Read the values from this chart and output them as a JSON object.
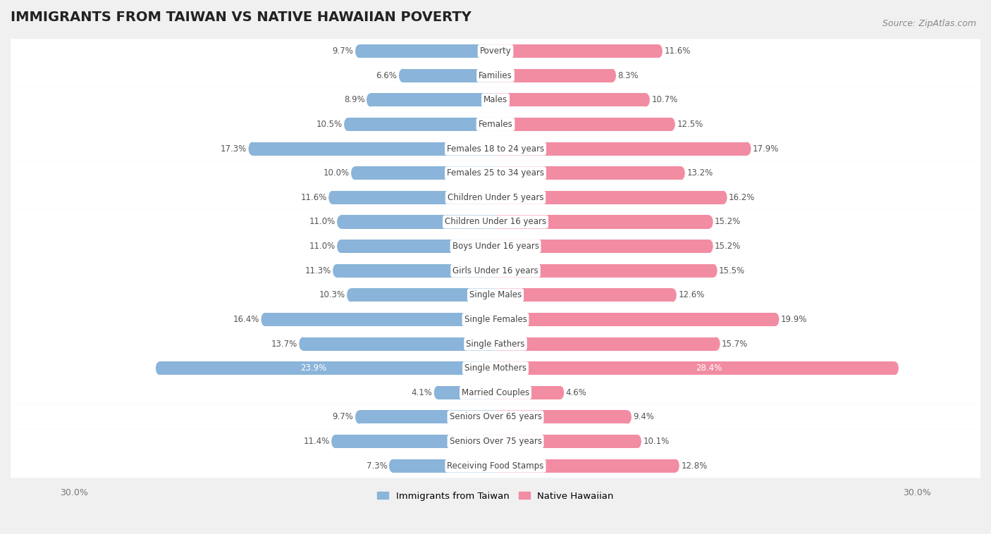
{
  "title": "IMMIGRANTS FROM TAIWAN VS NATIVE HAWAIIAN POVERTY",
  "source": "Source: ZipAtlas.com",
  "categories": [
    "Poverty",
    "Families",
    "Males",
    "Females",
    "Females 18 to 24 years",
    "Females 25 to 34 years",
    "Children Under 5 years",
    "Children Under 16 years",
    "Boys Under 16 years",
    "Girls Under 16 years",
    "Single Males",
    "Single Females",
    "Single Fathers",
    "Single Mothers",
    "Married Couples",
    "Seniors Over 65 years",
    "Seniors Over 75 years",
    "Receiving Food Stamps"
  ],
  "taiwan_values": [
    9.7,
    6.6,
    8.9,
    10.5,
    17.3,
    10.0,
    11.6,
    11.0,
    11.0,
    11.3,
    10.3,
    16.4,
    13.7,
    23.9,
    4.1,
    9.7,
    11.4,
    7.3
  ],
  "hawaiian_values": [
    11.6,
    8.3,
    10.7,
    12.5,
    17.9,
    13.2,
    16.2,
    15.2,
    15.2,
    15.5,
    12.6,
    19.9,
    15.7,
    28.4,
    4.6,
    9.4,
    10.1,
    12.8
  ],
  "taiwan_color": "#8ab4d9",
  "hawaiian_color": "#f28ca3",
  "taiwan_color_light": "#b8d4ea",
  "hawaiian_color_light": "#f7b8c5",
  "background_color": "#f0f0f0",
  "row_bg_color": "#ffffff",
  "row_separator_color": "#e8e8e8",
  "axis_max": 30.0,
  "bar_height": 0.55,
  "legend_taiwan": "Immigrants from Taiwan",
  "legend_hawaiian": "Native Hawaiian",
  "title_fontsize": 14,
  "label_fontsize": 8.5,
  "value_fontsize": 8.5,
  "source_fontsize": 9,
  "value_color": "#555555",
  "cat_label_color": "#444444",
  "single_mothers_value_color": "#ffffff",
  "single_females_value_color": "#ffffff"
}
